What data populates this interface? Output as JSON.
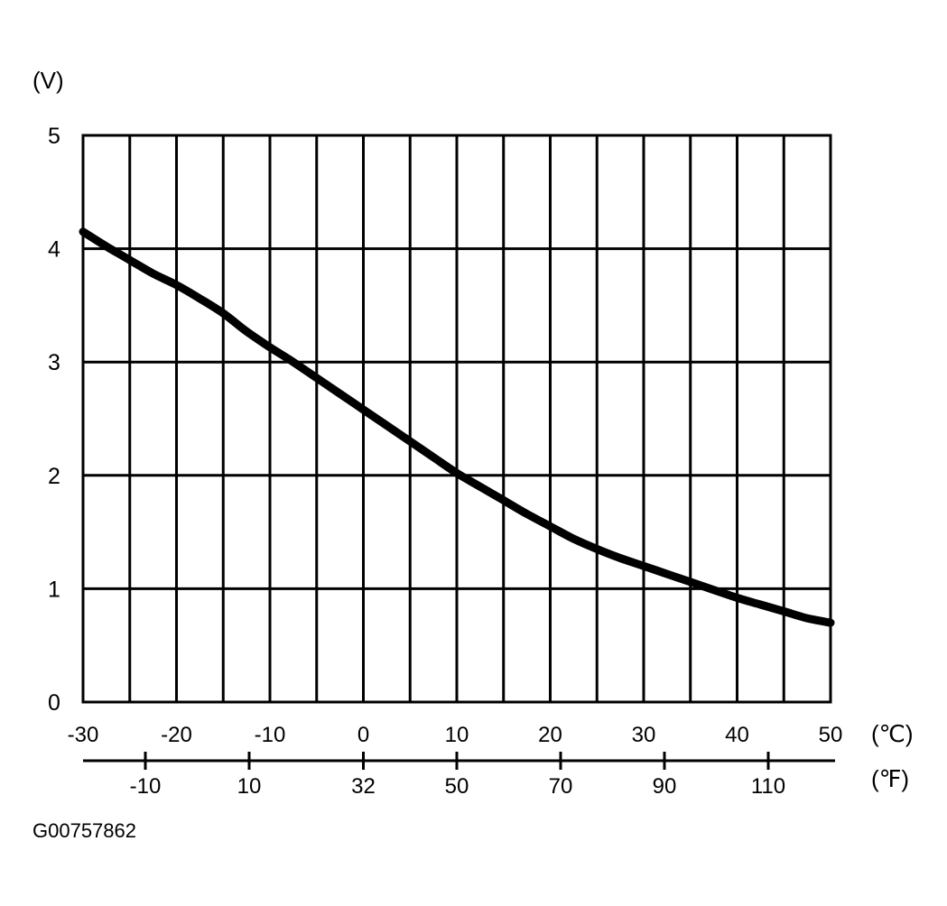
{
  "chart_data": {
    "type": "line",
    "ylabel": "(V)",
    "xlabel": "(℃)",
    "x2label": "(℉)",
    "ylim": [
      0,
      5
    ],
    "xlim": [
      -30,
      50
    ],
    "grid": true,
    "y_ticks": [
      "0",
      "1",
      "2",
      "3",
      "4",
      "5"
    ],
    "x_ticks_celsius": [
      "-30",
      "-20",
      "-10",
      "0",
      "10",
      "20",
      "30",
      "40",
      "50"
    ],
    "x_ticks_fahrenheit": [
      {
        "label": "-10",
        "value": -10
      },
      {
        "label": "10",
        "value": 10
      },
      {
        "label": "32",
        "value": 32
      },
      {
        "label": "50",
        "value": 50
      },
      {
        "label": "70",
        "value": 70
      },
      {
        "label": "90",
        "value": 90
      },
      {
        "label": "110",
        "value": 110
      }
    ],
    "series": [
      {
        "x": [
          -30,
          -27.5,
          -25,
          -22.5,
          -20,
          -17.5,
          -15,
          -12.5,
          -10,
          -7.5,
          -5,
          -2.5,
          0,
          2.5,
          5,
          7.5,
          10,
          12.5,
          15,
          17.5,
          20,
          22.5,
          25,
          27.5,
          30,
          32.5,
          35,
          37.5,
          40,
          42.5,
          45,
          47.5,
          50
        ],
        "y": [
          4.15,
          4.02,
          3.9,
          3.78,
          3.68,
          3.56,
          3.43,
          3.27,
          3.13,
          3.0,
          2.86,
          2.72,
          2.58,
          2.44,
          2.3,
          2.16,
          2.02,
          1.9,
          1.78,
          1.66,
          1.55,
          1.44,
          1.35,
          1.27,
          1.2,
          1.13,
          1.06,
          0.99,
          0.92,
          0.86,
          0.8,
          0.74,
          0.7
        ]
      }
    ]
  },
  "figure_id": "G00757862"
}
